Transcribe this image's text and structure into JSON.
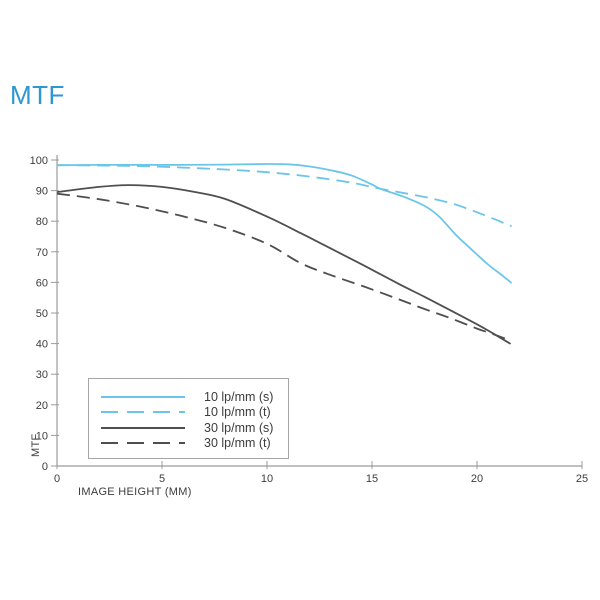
{
  "page": {
    "background": "#ffffff"
  },
  "colors": {
    "accent_blue": "#2e96d1",
    "cyan_line": "#6cc5e9",
    "dark_line": "#4f4f4f",
    "axis": "#9b9b9b",
    "text": "#3d3d3d",
    "legend_border": "#a5a5a5"
  },
  "chart_data": {
    "type": "line",
    "title": "MTF",
    "xlabel": "IMAGE HEIGHT (MM)",
    "ylabel": "MTF",
    "xlim": [
      0,
      25
    ],
    "ylim": [
      0,
      100
    ],
    "xticks": [
      0,
      5,
      10,
      15,
      20,
      25
    ],
    "yticks": [
      0,
      10,
      20,
      30,
      40,
      50,
      60,
      70,
      80,
      90,
      100
    ],
    "grid": false,
    "legend_position": "bottom-left-inside",
    "series": [
      {
        "name": "10 lp/mm (s)",
        "color": "#6cc5e9",
        "dash": "solid",
        "points": [
          [
            0,
            98.3
          ],
          [
            2,
            98.4
          ],
          [
            4,
            98.4
          ],
          [
            6,
            98.4
          ],
          [
            8,
            98.5
          ],
          [
            10,
            98.7
          ],
          [
            11,
            98.6
          ],
          [
            12,
            97.9
          ],
          [
            13,
            96.7
          ],
          [
            14,
            95.0
          ],
          [
            15,
            92.0
          ],
          [
            15.4,
            90.6
          ],
          [
            16.5,
            88.0
          ],
          [
            17.5,
            85.0
          ],
          [
            18.2,
            81.5
          ],
          [
            19,
            75.5
          ],
          [
            19.7,
            71.0
          ],
          [
            20.5,
            66.0
          ],
          [
            21.2,
            62.3
          ],
          [
            21.65,
            59.8
          ]
        ]
      },
      {
        "name": "10 lp/mm (t)",
        "color": "#6cc5e9",
        "dash": "dashed",
        "points": [
          [
            0,
            98.3
          ],
          [
            2,
            98.2
          ],
          [
            4,
            98.0
          ],
          [
            6,
            97.5
          ],
          [
            8,
            96.9
          ],
          [
            10,
            96.0
          ],
          [
            12,
            94.6
          ],
          [
            14,
            92.6
          ],
          [
            15.4,
            90.6
          ],
          [
            17,
            88.6
          ],
          [
            18,
            87.2
          ],
          [
            19,
            85.4
          ],
          [
            20,
            82.9
          ],
          [
            21,
            80.2
          ],
          [
            21.65,
            78.3
          ]
        ]
      },
      {
        "name": "30 lp/mm (s)",
        "color": "#4f4f4f",
        "dash": "solid",
        "points": [
          [
            0,
            89.5
          ],
          [
            2,
            91.2
          ],
          [
            3.5,
            91.8
          ],
          [
            5,
            91.2
          ],
          [
            6.5,
            89.6
          ],
          [
            8,
            87.3
          ],
          [
            10,
            81.5
          ],
          [
            11.6,
            76.1
          ],
          [
            13,
            71.2
          ],
          [
            14.6,
            65.6
          ],
          [
            16.3,
            59.4
          ],
          [
            17.5,
            55.3
          ],
          [
            18.7,
            51.0
          ],
          [
            20,
            46.3
          ],
          [
            20.6,
            44.0
          ],
          [
            21.6,
            39.9
          ]
        ]
      },
      {
        "name": "30 lp/mm (t)",
        "color": "#4f4f4f",
        "dash": "dashed",
        "points": [
          [
            0,
            89.0
          ],
          [
            2,
            87.2
          ],
          [
            4,
            84.7
          ],
          [
            6,
            81.6
          ],
          [
            8,
            77.8
          ],
          [
            10,
            72.6
          ],
          [
            11.6,
            66.3
          ],
          [
            13,
            62.5
          ],
          [
            14.6,
            58.7
          ],
          [
            16.3,
            54.4
          ],
          [
            17.5,
            51.3
          ],
          [
            18.7,
            48.4
          ],
          [
            20,
            44.9
          ],
          [
            20.6,
            43.5
          ],
          [
            21.6,
            41.0
          ]
        ]
      }
    ]
  }
}
